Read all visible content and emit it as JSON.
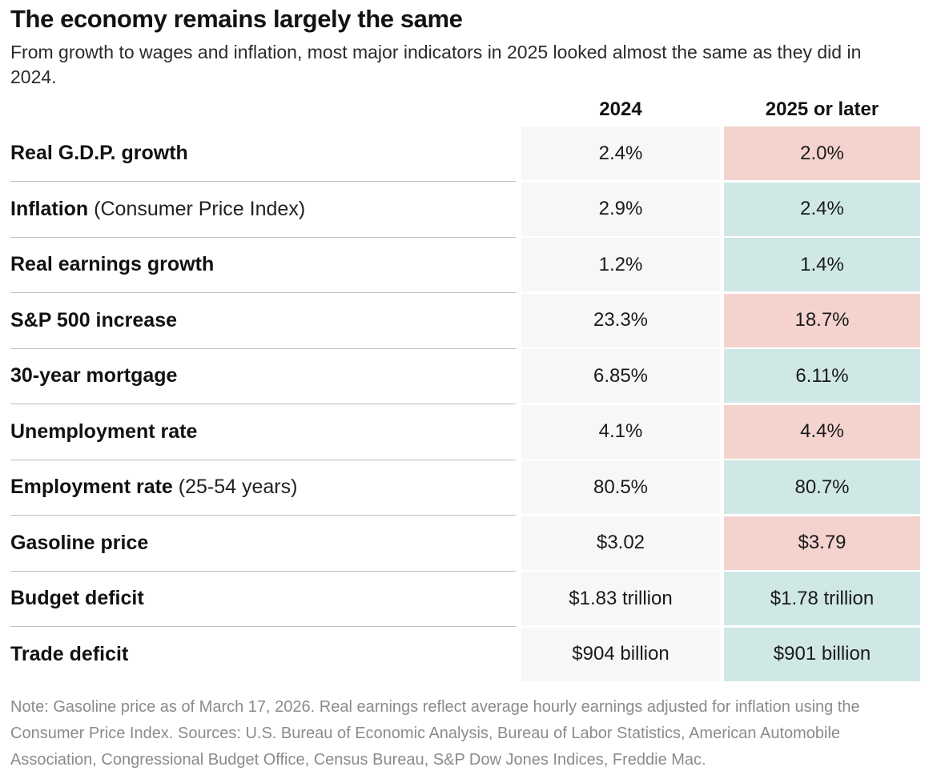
{
  "chart_data": {
    "type": "table",
    "title": "The economy remains largely the same",
    "subtitle": "From growth to wages and inflation, most major indicators in 2025 looked almost the same as they did in 2024.",
    "columns": [
      "2024",
      "2025 or later"
    ],
    "rows": [
      {
        "label": "Real G.D.P. growth",
        "qualifier": "",
        "values": [
          "2.4%",
          "2.0%"
        ],
        "change_tone": "worse"
      },
      {
        "label": "Inflation",
        "qualifier": "(Consumer Price Index)",
        "values": [
          "2.9%",
          "2.4%"
        ],
        "change_tone": "better"
      },
      {
        "label": "Real earnings growth",
        "qualifier": "",
        "values": [
          "1.2%",
          "1.4%"
        ],
        "change_tone": "better"
      },
      {
        "label": "S&P 500 increase",
        "qualifier": "",
        "values": [
          "23.3%",
          "18.7%"
        ],
        "change_tone": "worse"
      },
      {
        "label": "30-year mortgage",
        "qualifier": "",
        "values": [
          "6.85%",
          "6.11%"
        ],
        "change_tone": "better"
      },
      {
        "label": "Unemployment rate",
        "qualifier": "",
        "values": [
          "4.1%",
          "4.4%"
        ],
        "change_tone": "worse"
      },
      {
        "label": "Employment rate",
        "qualifier": "(25-54 years)",
        "values": [
          "80.5%",
          "80.7%"
        ],
        "change_tone": "better"
      },
      {
        "label": "Gasoline price",
        "qualifier": "",
        "values": [
          "$3.02",
          "$3.79"
        ],
        "change_tone": "worse"
      },
      {
        "label": "Budget deficit",
        "qualifier": "",
        "values": [
          "$1.83 trillion",
          "$1.78 trillion"
        ],
        "change_tone": "better"
      },
      {
        "label": "Trade deficit",
        "qualifier": "",
        "values": [
          "$904 billion",
          "$901 billion"
        ],
        "change_tone": "better"
      }
    ],
    "note": "Note: Gasoline price as of March 17, 2026. Real earnings reflect average hourly earnings adjusted for inflation using the Consumer Price Index. Sources: U.S. Bureau of Economic Analysis, Bureau of Labor Statistics, American Automobile Association, Congressional Budget Office, Census Bureau, S&P Dow Jones Indices, Freddie Mac.",
    "layout_hints": {
      "grid": "off",
      "legend": "none",
      "baseline_column_is_gray": true
    }
  },
  "colors": {
    "worse_highlight": "#f4d3cf",
    "better_highlight": "#cfe8e6",
    "baseline_column": "#f7f7f7",
    "row_rule": "#bfbfbf",
    "note_text": "#8b8b8b"
  }
}
